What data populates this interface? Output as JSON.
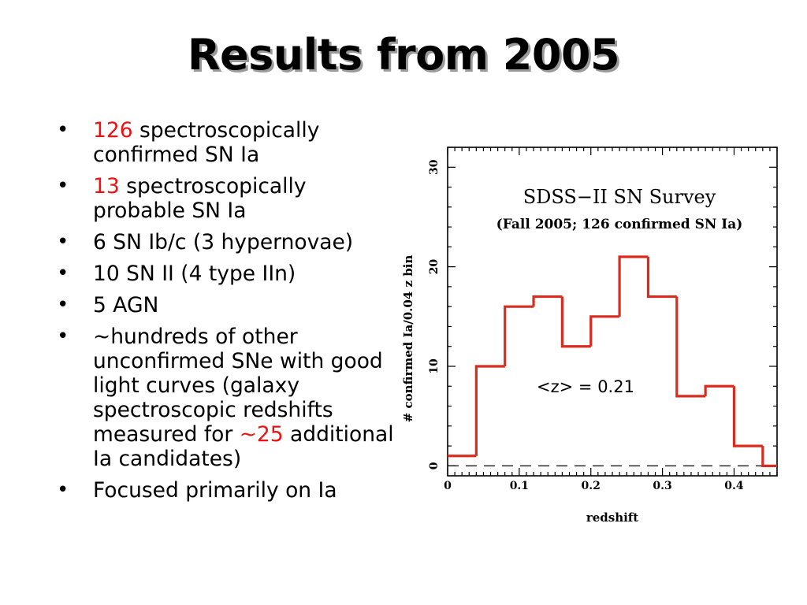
{
  "slide": {
    "title": "Results from 2005",
    "bullets": [
      {
        "highlight": "126",
        "text": " spectroscopically confirmed SN Ia"
      },
      {
        "highlight": "13",
        "text": " spectroscopically probable SN Ia"
      },
      {
        "text": "6 SN Ib/c (3 hypernovae)"
      },
      {
        "text": "10 SN II (4 type IIn)"
      },
      {
        "text": "5 AGN"
      },
      {
        "text": "~hundreds of other unconfirmed SNe with good light curves (galaxy spectroscopic redshifts measured for ",
        "highlight": "~25",
        "text_after": " additional Ia candidates)"
      },
      {
        "text": "Focused primarily on Ia"
      }
    ]
  },
  "chart_data": {
    "type": "bar",
    "title": "SDSS−II SN Survey",
    "subtitle": "(Fall 2005; 126 confirmed SN Ia)",
    "xlabel": "redshift",
    "ylabel": "# confirmed Ia/0.04 z bin",
    "annotation": "<z> = 0.21",
    "xlim": [
      0,
      0.46
    ],
    "ylim": [
      -1,
      32
    ],
    "x_ticks": [
      0,
      0.1,
      0.2,
      0.3,
      0.4
    ],
    "x_tick_labels": [
      "0",
      "0.1",
      "0.2",
      "0.3",
      "0.4"
    ],
    "y_ticks": [
      0,
      10,
      20,
      30
    ],
    "y_tick_labels": [
      "0",
      "10",
      "20",
      "30"
    ],
    "bin_edges": [
      0,
      0.04,
      0.08,
      0.12,
      0.16,
      0.2,
      0.24,
      0.28,
      0.32,
      0.36,
      0.4,
      0.44,
      0.46
    ],
    "values": [
      1,
      10,
      16,
      17,
      12,
      15,
      21,
      17,
      7,
      8,
      2,
      0
    ],
    "series_color": "#d92b1e",
    "zero_line_dashed": true,
    "grid": false
  }
}
